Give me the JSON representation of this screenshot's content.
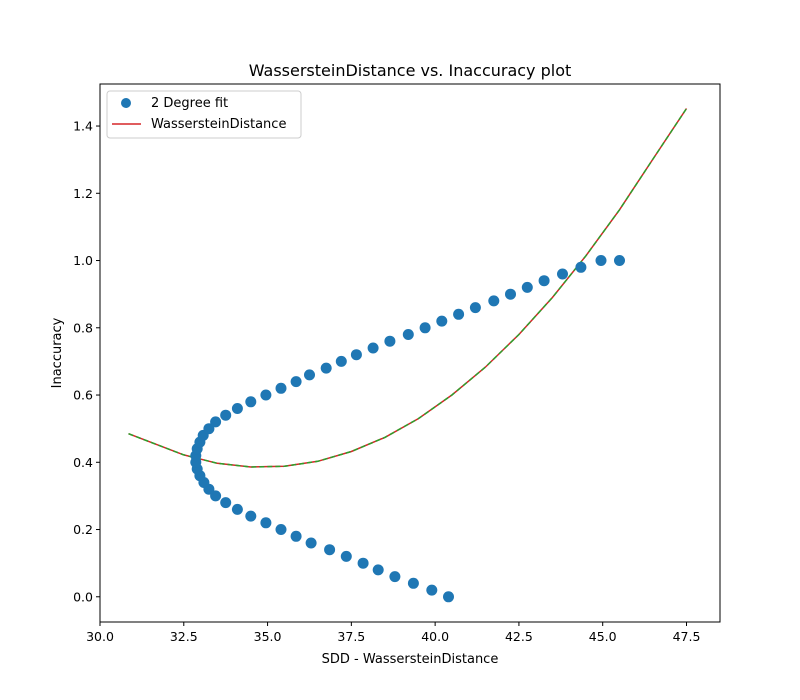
{
  "chart_data": {
    "type": "scatter",
    "title": "WassersteinDistance vs. Inaccuracy plot",
    "xlabel": "SDD - WassersteinDistance",
    "ylabel": "Inaccuracy",
    "xlim": [
      30.0,
      48.5
    ],
    "ylim": [
      -0.075,
      1.525
    ],
    "xticks": [
      "30.0",
      "32.5",
      "35.0",
      "37.5",
      "40.0",
      "42.5",
      "45.0",
      "47.5"
    ],
    "yticks": [
      "0.0",
      "0.2",
      "0.4",
      "0.6",
      "0.8",
      "1.0",
      "1.2",
      "1.4"
    ],
    "grid": false,
    "legend_position": "top-left",
    "legend": [
      {
        "label": "2 Degree fit",
        "marker": "circle",
        "color": "#1f77b4"
      },
      {
        "label": "WassersteinDistance",
        "marker": "line",
        "color": "#d62728"
      }
    ],
    "series": [
      {
        "name": "2 Degree fit",
        "kind": "scatter",
        "color": "#1f77b4",
        "x": [
          40.4,
          39.9,
          39.35,
          38.8,
          38.3,
          37.85,
          37.35,
          36.85,
          36.3,
          35.85,
          35.4,
          34.95,
          34.5,
          34.1,
          33.75,
          33.45,
          33.25,
          33.1,
          32.98,
          32.9,
          32.86,
          32.86,
          32.9,
          32.98,
          33.08,
          33.25,
          33.45,
          33.75,
          34.1,
          34.5,
          34.95,
          35.4,
          35.85,
          36.25,
          36.75,
          37.2,
          37.65,
          38.15,
          38.65,
          39.2,
          39.7,
          40.2,
          40.7,
          41.2,
          41.75,
          42.25,
          42.75,
          43.25,
          43.8,
          44.35,
          44.95,
          45.5
        ],
        "y": [
          0.0,
          0.02,
          0.04,
          0.06,
          0.08,
          0.1,
          0.12,
          0.14,
          0.16,
          0.18,
          0.2,
          0.22,
          0.24,
          0.26,
          0.28,
          0.3,
          0.32,
          0.34,
          0.36,
          0.38,
          0.4,
          0.42,
          0.44,
          0.46,
          0.48,
          0.5,
          0.52,
          0.54,
          0.56,
          0.58,
          0.6,
          0.62,
          0.64,
          0.66,
          0.68,
          0.7,
          0.72,
          0.74,
          0.76,
          0.78,
          0.8,
          0.82,
          0.84,
          0.86,
          0.88,
          0.9,
          0.92,
          0.94,
          0.96,
          0.98,
          1.0,
          1.0
        ]
      },
      {
        "name": "WassersteinDistance",
        "kind": "line",
        "color": "#d62728",
        "style": "solid",
        "x": [
          30.85,
          31.5,
          32.5,
          33.5,
          34.5,
          35.5,
          36.5,
          37.5,
          38.5,
          39.5,
          40.5,
          41.5,
          42.5,
          43.5,
          44.5,
          45.5,
          46.5,
          47.5
        ],
        "y": [
          0.485,
          0.46,
          0.422,
          0.397,
          0.386,
          0.388,
          0.403,
          0.432,
          0.474,
          0.53,
          0.6,
          0.683,
          0.78,
          0.89,
          1.014,
          1.151,
          1.302,
          1.452
        ]
      },
      {
        "name": "",
        "kind": "line",
        "color": "#2ca02c",
        "style": "dashed",
        "x": [
          30.85,
          31.5,
          32.5,
          33.5,
          34.5,
          35.5,
          36.5,
          37.5,
          38.5,
          39.5,
          40.5,
          41.5,
          42.5,
          43.5,
          44.5,
          45.5,
          46.5,
          47.5
        ],
        "y": [
          0.485,
          0.46,
          0.422,
          0.397,
          0.386,
          0.388,
          0.403,
          0.432,
          0.474,
          0.53,
          0.6,
          0.683,
          0.78,
          0.89,
          1.014,
          1.151,
          1.302,
          1.452
        ]
      }
    ]
  }
}
